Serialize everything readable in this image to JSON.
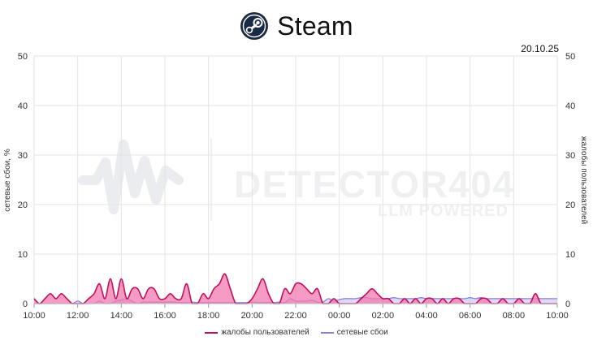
{
  "header": {
    "title": "Steam",
    "icon": "steam-logo-icon"
  },
  "date_label": "20.10.25",
  "watermark": {
    "brand": "DETECTOR404",
    "tagline": "LLM POWERED"
  },
  "chart_data": {
    "type": "area",
    "x_ticks": [
      "10:00",
      "12:00",
      "14:00",
      "16:00",
      "18:00",
      "20:00",
      "22:00",
      "00:00",
      "02:00",
      "04:00",
      "06:00",
      "08:00",
      "10:00"
    ],
    "y_left": {
      "label": "сетевые сбои, %",
      "ticks": [
        0,
        10,
        20,
        30,
        40,
        50
      ],
      "range": [
        0,
        50
      ]
    },
    "y_right": {
      "label": "жалобы пользователей",
      "ticks": [
        0,
        10,
        20,
        30,
        40,
        50
      ],
      "range": [
        0,
        50
      ]
    },
    "grid": true,
    "legend_position": "bottom",
    "x_hours": [
      0,
      0.25,
      0.5,
      0.75,
      1,
      1.25,
      1.5,
      1.75,
      2,
      2.25,
      2.5,
      2.75,
      3,
      3.25,
      3.5,
      3.75,
      4,
      4.25,
      4.5,
      4.75,
      5,
      5.25,
      5.5,
      5.75,
      6,
      6.25,
      6.5,
      6.75,
      7,
      7.25,
      7.5,
      7.75,
      8,
      8.25,
      8.5,
      8.75,
      9,
      9.25,
      9.5,
      9.75,
      10,
      10.25,
      10.5,
      10.75,
      11,
      11.25,
      11.5,
      11.75,
      12,
      12.25,
      12.5,
      12.75,
      13,
      13.25,
      13.5,
      13.75,
      14,
      14.25,
      14.5,
      14.75,
      15,
      15.25,
      15.5,
      15.75,
      16,
      16.25,
      16.5,
      16.75,
      17,
      17.25,
      17.5,
      17.75,
      18,
      18.25,
      18.5,
      18.75,
      19,
      19.25,
      19.5,
      19.75,
      20,
      20.25,
      20.5,
      20.75,
      21,
      21.25,
      21.5,
      21.75,
      22,
      22.25,
      22.5,
      22.75,
      23,
      23.25,
      23.5,
      23.75,
      24
    ],
    "series": [
      {
        "name": "жалобы пользователей",
        "color": "#c0105a",
        "fill": "#f27ab0",
        "values": [
          1,
          0,
          1,
          2,
          1,
          2,
          1,
          0,
          0,
          0,
          1,
          2,
          4,
          1,
          5,
          1,
          5,
          1,
          3,
          3,
          1,
          3,
          3,
          1,
          1,
          2,
          1,
          1,
          4,
          0,
          0,
          2,
          1,
          3,
          4,
          6,
          3,
          0,
          0,
          0,
          1,
          3,
          5,
          2,
          0,
          0,
          3,
          2,
          4,
          4,
          3,
          2,
          3,
          0,
          0,
          1,
          0,
          0,
          0,
          0,
          1,
          2,
          3,
          2,
          1,
          1,
          0,
          0,
          1,
          0,
          1,
          0,
          1,
          1,
          0,
          1,
          0,
          1,
          1,
          0,
          0,
          0,
          1,
          1,
          0,
          0,
          1,
          0,
          0,
          1,
          0,
          0,
          2,
          0,
          0,
          0,
          0
        ]
      },
      {
        "name": "сетевые сбои",
        "color": "#8c7ee0",
        "fill": "#c9c0f2",
        "values": [
          0,
          0,
          0,
          0,
          0,
          0,
          0,
          0,
          0.5,
          0,
          0,
          0,
          0.5,
          0,
          0,
          0.5,
          0.7,
          1,
          0.5,
          0,
          0.3,
          0.3,
          0.3,
          0.3,
          0.3,
          0.3,
          0.3,
          0.2,
          0.2,
          0.3,
          0.2,
          0.2,
          0.2,
          0.2,
          0.2,
          0.2,
          0.2,
          0.2,
          0.2,
          0.2,
          0.3,
          0.2,
          0.2,
          0.2,
          0.2,
          0.3,
          0.2,
          1,
          0.5,
          0.5,
          0.5,
          0.7,
          0.3,
          0.3,
          1,
          0.5,
          0.8,
          1,
          1,
          1,
          1.2,
          1.2,
          1,
          1,
          1,
          1,
          1.2,
          1,
          1,
          1,
          1,
          1.2,
          1,
          1,
          1,
          1,
          1,
          1,
          1,
          1,
          1.2,
          1,
          1.2,
          1,
          1,
          1,
          1,
          1,
          1,
          1,
          1,
          1,
          1,
          1,
          1,
          1,
          1
        ]
      }
    ]
  }
}
